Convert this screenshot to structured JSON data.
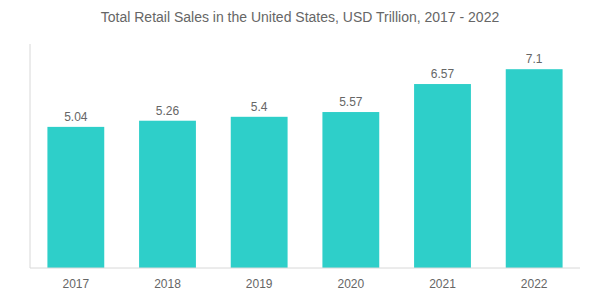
{
  "chart_data": {
    "type": "bar",
    "title": "Total Retail Sales in the United States, USD Trillion,  2017 - 2022",
    "categories": [
      "2017",
      "2018",
      "2019",
      "2020",
      "2021",
      "2022"
    ],
    "values": [
      5.04,
      5.26,
      5.4,
      5.57,
      6.57,
      7.1
    ],
    "color": "#2ECFC9",
    "ylim": [
      0,
      8.0
    ],
    "grid": false,
    "data_labels": true,
    "tick_labels": "x"
  }
}
